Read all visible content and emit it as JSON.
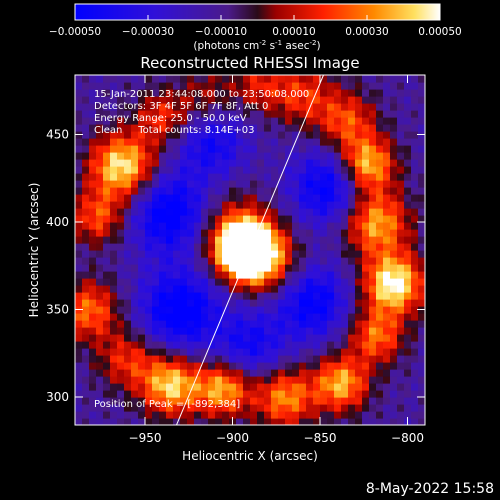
{
  "chart_data": {
    "type": "heatmap",
    "title": "Reconstructed RHESSI Image",
    "xlabel": "Heliocentric X (arcsec)",
    "ylabel": "Heliocentric Y (arcsec)",
    "xlim": [
      -990,
      -790
    ],
    "ylim": [
      284,
      484
    ],
    "xticks": [
      -950,
      -900,
      -850,
      -800
    ],
    "yticks": [
      300,
      350,
      400,
      450
    ],
    "colorbar": {
      "range": [
        -0.0005,
        0.0005
      ],
      "ticks": [
        "-0.00050",
        "-0.00030",
        "-0.00010",
        "0.00010",
        "0.00030",
        "0.00050"
      ],
      "unit_main": "(photons cm",
      "unit_sup1": "-2",
      "unit_mid": " s",
      "unit_sup2": "-1",
      "unit_mid2": " asec",
      "unit_sup3": "-2",
      "unit_end": ")"
    },
    "annotations": [
      "15-Jan-2011 23:44:08.000 to 23:50:08.000",
      "Detectors: 3F 4F 5F 6F 7F 8F, Att 0",
      "Energy Range: 25.0 - 50.0 keV",
      "Clean     Total counts: 8.14E+03"
    ],
    "peak_label": "Position of Peak = [-892,384]",
    "peak": {
      "x": -892,
      "y": 384,
      "value": 0.0005
    },
    "limb_line": [
      [
        -932,
        284
      ],
      [
        -848,
        484
      ]
    ],
    "grid": false,
    "sources": [
      {
        "x": -892,
        "y": 384,
        "amp": 0.00095,
        "w": 11
      },
      {
        "x": -900,
        "y": 395,
        "amp": 0.0003,
        "w": 16
      },
      {
        "x": -878,
        "y": 376,
        "amp": 0.0003,
        "w": 14
      },
      {
        "x": -963,
        "y": 432,
        "amp": 0.0006,
        "w": 13
      },
      {
        "x": -977,
        "y": 403,
        "amp": 0.00035,
        "w": 11
      },
      {
        "x": -982,
        "y": 350,
        "amp": 0.0004,
        "w": 12
      },
      {
        "x": -960,
        "y": 322,
        "amp": 0.0003,
        "w": 12
      },
      {
        "x": -935,
        "y": 307,
        "amp": 0.00055,
        "w": 12
      },
      {
        "x": -905,
        "y": 305,
        "amp": 0.0005,
        "w": 11
      },
      {
        "x": -870,
        "y": 300,
        "amp": 0.00045,
        "w": 12
      },
      {
        "x": -838,
        "y": 308,
        "amp": 0.0005,
        "w": 11
      },
      {
        "x": -818,
        "y": 335,
        "amp": 0.0004,
        "w": 11
      },
      {
        "x": -808,
        "y": 365,
        "amp": 0.00065,
        "w": 12
      },
      {
        "x": -818,
        "y": 400,
        "amp": 0.0005,
        "w": 13
      },
      {
        "x": -823,
        "y": 433,
        "amp": 0.00055,
        "w": 11
      },
      {
        "x": -835,
        "y": 458,
        "amp": 0.00035,
        "w": 12
      },
      {
        "x": -860,
        "y": 473,
        "amp": 0.0003,
        "w": 12
      },
      {
        "x": -885,
        "y": 478,
        "amp": 0.00025,
        "w": 11
      },
      {
        "x": -915,
        "y": 472,
        "amp": 0.0002,
        "w": 11
      },
      {
        "x": -940,
        "y": 460,
        "amp": 0.0003,
        "w": 11
      },
      {
        "x": -930,
        "y": 350,
        "amp": -0.00045,
        "w": 16
      },
      {
        "x": -935,
        "y": 405,
        "amp": -0.00045,
        "w": 16
      },
      {
        "x": -912,
        "y": 445,
        "amp": -0.0003,
        "w": 14
      },
      {
        "x": -855,
        "y": 355,
        "amp": -0.0004,
        "w": 15
      },
      {
        "x": -845,
        "y": 420,
        "amp": -0.0004,
        "w": 15
      },
      {
        "x": -890,
        "y": 330,
        "amp": -0.0003,
        "w": 14
      }
    ]
  },
  "footer": {
    "timestamp": "8-May-2022 15:58"
  }
}
